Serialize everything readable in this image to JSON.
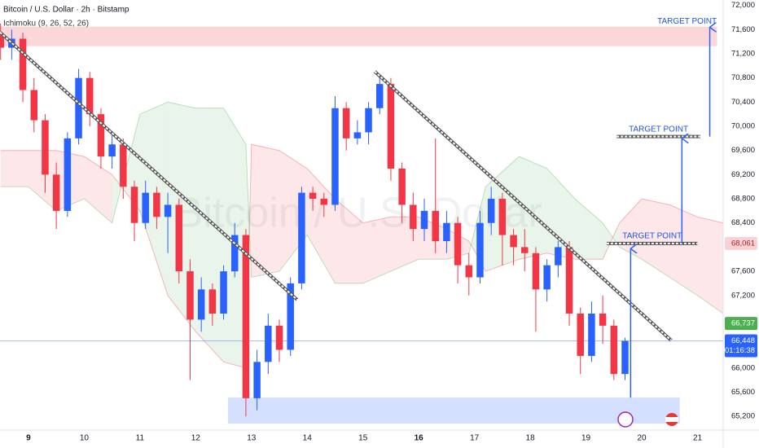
{
  "chart_data": {
    "type": "candlestick",
    "title": "Bitcoin / U.S. Dollar · 2h · Bitstamp",
    "indicator": "Ichimoku (9, 26, 52, 26)",
    "watermark": "Bitcoin / U.S. Dollar",
    "up_color": "#2962ff",
    "down_color": "#f23645",
    "grid": false,
    "xlim": [
      8.49,
      21.46
    ],
    "ylim": [
      65080,
      72090
    ],
    "xticks": [
      9,
      10,
      11,
      12,
      13,
      14,
      15,
      16,
      17,
      18,
      19,
      20,
      21
    ],
    "yticks": [
      {
        "value": 72000,
        "label": "72,000"
      },
      {
        "value": 71600,
        "label": "71,600"
      },
      {
        "value": 71200,
        "label": "71,200"
      },
      {
        "value": 70800,
        "label": "70,800"
      },
      {
        "value": 70400,
        "label": "70,400"
      },
      {
        "value": 70000,
        "label": "70,000"
      },
      {
        "value": 69600,
        "label": "69,600"
      },
      {
        "value": 69200,
        "label": "69,200"
      },
      {
        "value": 68800,
        "label": "68,800"
      },
      {
        "value": 68400,
        "label": "68,400"
      },
      {
        "value": 67600,
        "label": "67,600"
      },
      {
        "value": 67200,
        "label": "67,200"
      },
      {
        "value": 66000,
        "label": "66,000"
      },
      {
        "value": 65600,
        "label": "65,600"
      },
      {
        "value": 65200,
        "label": "65,200"
      }
    ],
    "x": [
      8.5,
      8.7,
      8.9,
      9.1,
      9.3,
      9.5,
      9.7,
      9.9,
      10.1,
      10.3,
      10.5,
      10.7,
      10.9,
      11.1,
      11.3,
      11.5,
      11.7,
      11.9,
      12.1,
      12.3,
      12.5,
      12.7,
      12.9,
      13.1,
      13.3,
      13.5,
      13.7,
      13.9,
      14.1,
      14.3,
      14.5,
      14.7,
      14.9,
      15.1,
      15.3,
      15.5,
      15.7,
      15.9,
      16.1,
      16.3,
      16.5,
      16.7,
      16.9,
      17.1,
      17.3,
      17.5,
      17.7,
      17.9,
      18.1,
      18.3,
      18.5,
      18.7,
      18.9,
      19.1,
      19.3,
      19.5,
      19.7
    ],
    "open": [
      71500,
      71300,
      71450,
      70600,
      70100,
      69200,
      68600,
      69800,
      70800,
      70200,
      69500,
      69700,
      69000,
      68400,
      68900,
      68500,
      68700,
      67600,
      66800,
      67300,
      66900,
      67600,
      68200,
      65500,
      66100,
      66700,
      66300,
      67400,
      68900,
      68800,
      68700,
      70300,
      69800,
      69900,
      70300,
      70700,
      69300,
      68700,
      68300,
      68600,
      68100,
      68400,
      67700,
      67500,
      68400,
      68800,
      68200,
      68000,
      67900,
      67300,
      67700,
      68000,
      66900,
      66200,
      66900,
      66700,
      65900
    ],
    "high": [
      71700,
      71600,
      71550,
      70800,
      70200,
      69400,
      69900,
      70950,
      70900,
      70300,
      69900,
      69800,
      69100,
      69100,
      69000,
      68900,
      68800,
      67800,
      67500,
      67400,
      67700,
      68400,
      68300,
      66300,
      66900,
      66800,
      67500,
      69000,
      69000,
      68900,
      70500,
      70400,
      70100,
      70400,
      70850,
      70800,
      69400,
      68900,
      68800,
      69800,
      68600,
      68500,
      67900,
      68600,
      69000,
      68900,
      68300,
      68300,
      68000,
      67800,
      68100,
      68100,
      67000,
      67100,
      67200,
      66800,
      66500
    ],
    "low": [
      71100,
      71100,
      70400,
      69900,
      68900,
      68300,
      68500,
      69700,
      70000,
      69300,
      69300,
      68800,
      68100,
      68300,
      68300,
      67900,
      67400,
      65800,
      66600,
      66700,
      66800,
      67500,
      65200,
      65300,
      65900,
      66100,
      66200,
      67300,
      68600,
      68500,
      68600,
      69600,
      69700,
      69700,
      70200,
      69100,
      68400,
      68100,
      68100,
      67900,
      67900,
      67400,
      67200,
      67400,
      68200,
      67700,
      67700,
      67600,
      66600,
      67100,
      67500,
      66700,
      65900,
      66100,
      66400,
      65800,
      65800
    ],
    "close": [
      71300,
      71450,
      70600,
      70100,
      69200,
      68600,
      69800,
      70800,
      70200,
      69500,
      69700,
      69000,
      68400,
      68900,
      68500,
      68700,
      67600,
      66800,
      67300,
      66900,
      67600,
      68200,
      65500,
      66100,
      66700,
      66300,
      67400,
      68900,
      68800,
      68700,
      70300,
      69800,
      69900,
      70300,
      70700,
      69300,
      68700,
      68300,
      68600,
      68100,
      68400,
      67700,
      67500,
      68400,
      68800,
      68200,
      68000,
      67900,
      67300,
      67700,
      68000,
      66900,
      66200,
      66900,
      66700,
      65900,
      66448
    ],
    "cloud": {
      "x": [
        8.5,
        9.0,
        9.5,
        10.0,
        10.5,
        11.0,
        11.5,
        12.0,
        12.5,
        12.9,
        13.0,
        13.5,
        14.0,
        14.5,
        15.0,
        15.5,
        16.0,
        16.5,
        16.9,
        17.2,
        17.8,
        18.3,
        18.8,
        19.3,
        19.6,
        20.0,
        20.5,
        21.0,
        21.46
      ],
      "span_a": [
        69000,
        69000,
        68600,
        68800,
        68400,
        70200,
        70400,
        70300,
        70300,
        69700,
        67500,
        67600,
        68200,
        67400,
        67400,
        67600,
        67800,
        67800,
        67900,
        69000,
        69500,
        69300,
        68800,
        68400,
        68000,
        67800,
        67500,
        67200,
        66900
      ],
      "span_b": [
        69600,
        69600,
        69600,
        69500,
        69200,
        68600,
        67200,
        66600,
        66100,
        66000,
        69700,
        69600,
        69300,
        68800,
        68400,
        68500,
        68500,
        68300,
        68100,
        67600,
        67800,
        67900,
        67800,
        67800,
        68400,
        68800,
        68700,
        68500,
        68400
      ],
      "up_color": "#4caf50",
      "down_color": "#f23645"
    },
    "trendlines": [
      {
        "from": [
          8.49,
          71555
        ],
        "to": [
          13.82,
          67130
        ]
      },
      {
        "from": [
          15.21,
          70907
        ],
        "to": [
          20.53,
          66455
        ]
      }
    ],
    "zones": [
      {
        "x_from": 8.49,
        "x_to": 21.35,
        "from": 71325,
        "to": 71649,
        "color": "#f23645"
      },
      {
        "x_from": 12.58,
        "x_to": 20.68,
        "from": 65080,
        "to": 65510,
        "color": "#2962ff"
      }
    ],
    "targets": [
      {
        "label": "TARGET POINT",
        "x": 19.8,
        "from": 65510,
        "to": 67975,
        "level": 68061,
        "level_from": 19.37,
        "level_to": 21.0
      },
      {
        "label": "TARGET POINT",
        "x": 20.72,
        "from": 68061,
        "to": 69801,
        "level": 69830,
        "level_from": 19.55,
        "level_to": 21.05
      },
      {
        "label": "TARGET POINT",
        "x": 21.22,
        "from": 69830,
        "to": 71640
      }
    ],
    "price_labels": [
      {
        "value": 68061,
        "label": "68,061",
        "color": "#f8d3d6",
        "text_color": "#b71c1c"
      },
      {
        "value": 66737,
        "label": "66,737",
        "color": "#4caf50",
        "text_color": "#ffffff"
      },
      {
        "value": 66448,
        "label": "66,448",
        "color": "#2962ff",
        "text_color": "#ffffff",
        "line": true
      }
    ],
    "countdown": "01:16:38"
  }
}
